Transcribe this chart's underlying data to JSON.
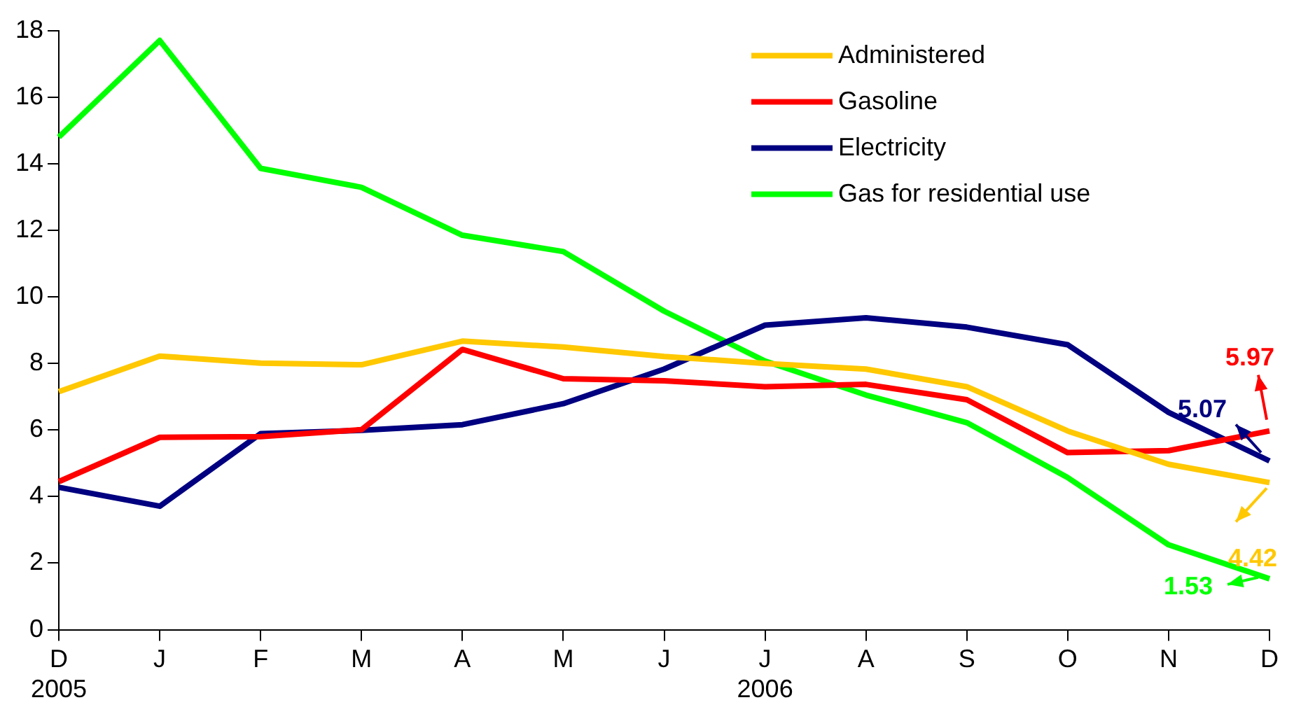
{
  "chart_data": {
    "type": "line",
    "categories": [
      "D\n2005",
      "J",
      "F",
      "M",
      "A",
      "M",
      "J",
      "J\n2006",
      "A",
      "S",
      "O",
      "N",
      "D"
    ],
    "ylim": [
      0,
      18
    ],
    "yticks": [
      0,
      2,
      4,
      6,
      8,
      10,
      12,
      14,
      16,
      18
    ],
    "grid": false,
    "legend": "top right",
    "marker": "none",
    "series": [
      {
        "name": "Administered",
        "color": "#ffc800",
        "values": [
          7.15,
          8.22,
          8.01,
          7.96,
          8.67,
          8.49,
          8.21,
          8.0,
          7.83,
          7.3,
          5.97,
          4.97,
          4.42
        ],
        "value_labels": [
          null,
          null,
          null,
          null,
          null,
          null,
          null,
          null,
          null,
          null,
          null,
          null,
          "4.42"
        ]
      },
      {
        "name": "Gasoline",
        "color": "#ff0000",
        "values": [
          4.45,
          5.78,
          5.8,
          6.01,
          8.42,
          7.54,
          7.48,
          7.3,
          7.37,
          6.91,
          5.32,
          5.38,
          5.97
        ],
        "value_labels": [
          null,
          null,
          null,
          null,
          null,
          null,
          null,
          null,
          null,
          null,
          null,
          null,
          "5.97"
        ]
      },
      {
        "name": "Electricity",
        "color": "#000080",
        "values": [
          4.28,
          3.71,
          5.89,
          5.99,
          6.16,
          6.79,
          7.83,
          9.15,
          9.37,
          9.09,
          8.56,
          6.53,
          5.07
        ],
        "value_labels": [
          null,
          null,
          null,
          null,
          null,
          null,
          null,
          null,
          null,
          null,
          null,
          null,
          "5.07"
        ]
      },
      {
        "name": "Gas for residential use",
        "color": "#00ff00",
        "values": [
          14.8,
          17.7,
          13.86,
          13.29,
          11.85,
          11.36,
          9.57,
          8.07,
          7.05,
          6.22,
          4.57,
          2.55,
          1.53
        ],
        "value_labels": [
          null,
          null,
          null,
          null,
          null,
          null,
          null,
          null,
          null,
          null,
          null,
          null,
          "1.53"
        ]
      }
    ]
  }
}
